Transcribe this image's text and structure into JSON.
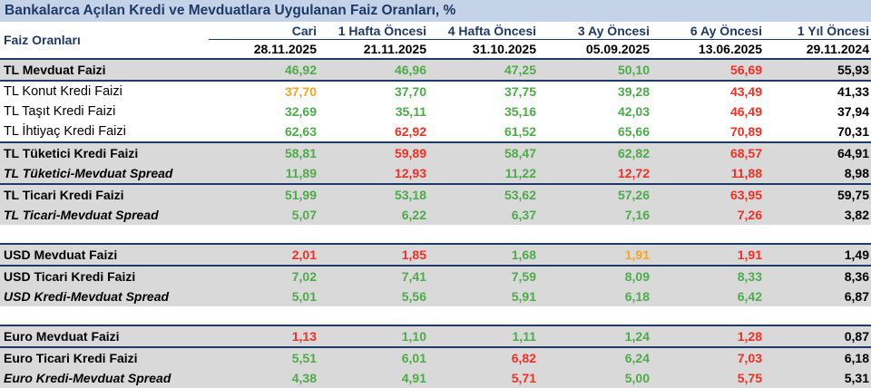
{
  "title": "Bankalarca Açılan Kredi ve Mevduatlara Uygulanan Faiz Oranları, %",
  "row_header": "Faiz Oranları",
  "columns": [
    {
      "label": "Cari",
      "date": "28.11.2025"
    },
    {
      "label": "1 Hafta Öncesi",
      "date": "21.11.2025"
    },
    {
      "label": "4 Hafta Öncesi",
      "date": "31.10.2025"
    },
    {
      "label": "3 Ay Öncesi",
      "date": "05.09.2025"
    },
    {
      "label": "6 Ay Öncesi",
      "date": "13.06.2025"
    },
    {
      "label": "1 Yıl Öncesi",
      "date": "29.11.2024"
    }
  ],
  "colors": {
    "green": "#4eab4a",
    "red": "#ee3124",
    "orange": "#f5a623",
    "black": "#000000",
    "header_blue": "#1f3a66",
    "title_bg": "#c5d3e8",
    "shade_bg": "#d9d9d9"
  },
  "rows": [
    {
      "label": "TL Mevduat Faizi",
      "style": "bold",
      "shade": true,
      "topline": true,
      "values": [
        "46,92",
        "46,96",
        "47,25",
        "50,10",
        "56,69",
        "55,93"
      ],
      "colors": [
        "green",
        "green",
        "green",
        "green",
        "red",
        "black"
      ]
    },
    {
      "label": "TL Konut Kredi Faizi",
      "style": "normal",
      "shade": false,
      "topline": true,
      "values": [
        "37,70",
        "37,70",
        "37,75",
        "39,28",
        "43,49",
        "41,33"
      ],
      "colors": [
        "orange",
        "green",
        "green",
        "green",
        "red",
        "black"
      ]
    },
    {
      "label": "TL Taşıt Kredi Faizi",
      "style": "normal",
      "shade": false,
      "topline": false,
      "values": [
        "32,69",
        "35,11",
        "35,16",
        "42,03",
        "46,49",
        "37,94"
      ],
      "colors": [
        "green",
        "green",
        "green",
        "green",
        "red",
        "black"
      ]
    },
    {
      "label": "TL İhtiyaç Kredi Faizi",
      "style": "normal",
      "shade": false,
      "topline": false,
      "values": [
        "62,63",
        "62,92",
        "61,52",
        "65,66",
        "70,89",
        "70,31"
      ],
      "colors": [
        "green",
        "red",
        "green",
        "green",
        "red",
        "black"
      ]
    },
    {
      "label": "TL Tüketici Kredi Faizi",
      "style": "bold",
      "shade": true,
      "topline": true,
      "values": [
        "58,81",
        "59,89",
        "58,47",
        "62,82",
        "68,57",
        "64,91"
      ],
      "colors": [
        "green",
        "red",
        "green",
        "green",
        "red",
        "black"
      ]
    },
    {
      "label": "TL Tüketici-Mevduat Spread",
      "style": "italic",
      "shade": true,
      "topline": false,
      "values": [
        "11,89",
        "12,93",
        "11,22",
        "12,72",
        "11,88",
        "8,98"
      ],
      "colors": [
        "green",
        "red",
        "green",
        "red",
        "red",
        "black"
      ]
    },
    {
      "label": "TL Ticari Kredi Faizi",
      "style": "bold",
      "shade": true,
      "topline": true,
      "values": [
        "51,99",
        "53,18",
        "53,62",
        "57,26",
        "63,95",
        "59,75"
      ],
      "colors": [
        "green",
        "green",
        "green",
        "green",
        "red",
        "black"
      ]
    },
    {
      "label": "TL Ticari-Mevduat Spread",
      "style": "italic",
      "shade": true,
      "topline": false,
      "values": [
        "5,07",
        "6,22",
        "6,37",
        "7,16",
        "7,26",
        "3,82"
      ],
      "colors": [
        "green",
        "green",
        "green",
        "green",
        "red",
        "black"
      ]
    },
    {
      "spacer": true
    },
    {
      "label": "USD Mevduat Faizi",
      "style": "bold",
      "shade": true,
      "topline": true,
      "values": [
        "2,01",
        "1,85",
        "1,68",
        "1,91",
        "1,91",
        "1,49"
      ],
      "colors": [
        "red",
        "red",
        "green",
        "orange",
        "red",
        "black"
      ]
    },
    {
      "label": "USD Ticari Kredi Faizi",
      "style": "bold",
      "shade": true,
      "topline": true,
      "values": [
        "7,02",
        "7,41",
        "7,59",
        "8,09",
        "8,33",
        "8,36"
      ],
      "colors": [
        "green",
        "green",
        "green",
        "green",
        "green",
        "black"
      ]
    },
    {
      "label": "USD Kredi-Mevduat Spread",
      "style": "italic",
      "shade": true,
      "topline": false,
      "values": [
        "5,01",
        "5,56",
        "5,91",
        "6,18",
        "6,42",
        "6,87"
      ],
      "colors": [
        "green",
        "green",
        "green",
        "green",
        "green",
        "black"
      ]
    },
    {
      "spacer": true
    },
    {
      "label": "Euro Mevduat Faizi",
      "style": "bold",
      "shade": true,
      "topline": true,
      "values": [
        "1,13",
        "1,10",
        "1,11",
        "1,24",
        "1,28",
        "0,87"
      ],
      "colors": [
        "red",
        "green",
        "green",
        "green",
        "red",
        "black"
      ]
    },
    {
      "label": "Euro Ticari Kredi Faizi",
      "style": "bold",
      "shade": true,
      "topline": true,
      "values": [
        "5,51",
        "6,01",
        "6,82",
        "6,24",
        "7,03",
        "6,18"
      ],
      "colors": [
        "green",
        "green",
        "red",
        "green",
        "red",
        "black"
      ]
    },
    {
      "label": "Euro Kredi-Mevduat Spread",
      "style": "italic",
      "shade": true,
      "topline": false,
      "values": [
        "4,38",
        "4,91",
        "5,71",
        "5,00",
        "5,75",
        "5,31"
      ],
      "colors": [
        "green",
        "green",
        "red",
        "green",
        "red",
        "black"
      ]
    }
  ]
}
